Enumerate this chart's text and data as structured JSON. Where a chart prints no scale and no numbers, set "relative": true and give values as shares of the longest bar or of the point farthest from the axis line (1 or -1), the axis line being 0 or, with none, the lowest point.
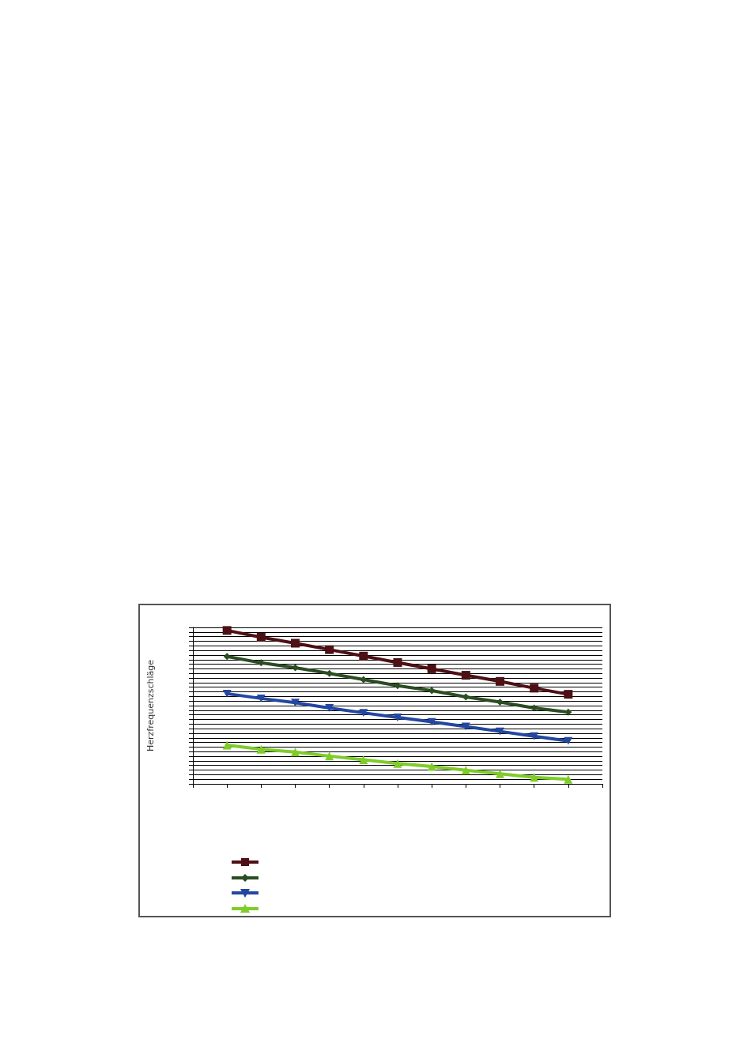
{
  "chart_data": {
    "type": "line",
    "ylabel": "Herzfrequenzschläge",
    "relative": true,
    "grid": "y",
    "categories": [
      null,
      null,
      null,
      null,
      null,
      null,
      null,
      null,
      null,
      null,
      null,
      null,
      null
    ],
    "series": [
      {
        "color": "#4d1014",
        "marker": "square",
        "values": [
          null,
          1,
          0.956,
          0.917,
          0.875,
          0.833,
          0.791,
          0.75,
          0.708,
          0.668,
          0.624,
          0.584,
          null
        ]
      },
      {
        "color": "#2a4d22",
        "marker": "diamond",
        "values": [
          null,
          0.831,
          0.789,
          0.757,
          0.72,
          0.68,
          0.64,
          0.608,
          0.567,
          0.533,
          0.495,
          0.467,
          null
        ]
      },
      {
        "color": "#2347a0",
        "marker": "triangle-down",
        "values": [
          null,
          0.588,
          0.557,
          0.529,
          0.495,
          0.463,
          0.433,
          0.404,
          0.374,
          0.342,
          0.31,
          0.28,
          null
        ]
      },
      {
        "color": "#7fcc2a",
        "marker": "triangle",
        "values": [
          null,
          0.252,
          0.225,
          0.207,
          0.181,
          0.157,
          0.133,
          0.113,
          0.089,
          0.066,
          0.042,
          0.03,
          null
        ]
      }
    ]
  }
}
